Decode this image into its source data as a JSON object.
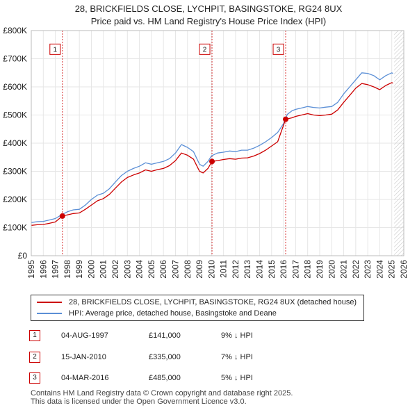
{
  "title_line1": "28, BRICKFIELDS CLOSE, LYCHPIT, BASINGSTOKE, RG24 8UX",
  "title_line2": "Price paid vs. HM Land Registry's House Price Index (HPI)",
  "colors": {
    "price_paid": "#cc0000",
    "hpi": "#5b8fd6",
    "marker_border": "#cc0000",
    "vline": "#cc0000"
  },
  "chart_data": {
    "type": "line",
    "title": "Price paid vs. HM Land Registry's House Price Index (HPI)",
    "xlabel": "",
    "ylabel": "",
    "xlim": [
      1995,
      2026
    ],
    "ylim": [
      0,
      800000
    ],
    "yticks": [
      {
        "value": 0,
        "label": "£0"
      },
      {
        "value": 100000,
        "label": "£100K"
      },
      {
        "value": 200000,
        "label": "£200K"
      },
      {
        "value": 300000,
        "label": "£300K"
      },
      {
        "value": 400000,
        "label": "£400K"
      },
      {
        "value": 500000,
        "label": "£500K"
      },
      {
        "value": 600000,
        "label": "£600K"
      },
      {
        "value": 700000,
        "label": "£700K"
      },
      {
        "value": 800000,
        "label": "£800K"
      }
    ],
    "xticks": [
      "1995",
      "1996",
      "1997",
      "1998",
      "1999",
      "2000",
      "2001",
      "2002",
      "2003",
      "2004",
      "2005",
      "2006",
      "2007",
      "2008",
      "2009",
      "2010",
      "2011",
      "2012",
      "2013",
      "2014",
      "2015",
      "2016",
      "2017",
      "2018",
      "2019",
      "2020",
      "2021",
      "2022",
      "2023",
      "2024",
      "2025",
      "2026"
    ],
    "series": [
      {
        "name": "HPI: Average price, detached house, Basingstoke and Deane",
        "color": "#5b8fd6",
        "points": [
          [
            1995.0,
            118000
          ],
          [
            1995.5,
            121000
          ],
          [
            1996.0,
            122000
          ],
          [
            1996.5,
            127000
          ],
          [
            1997.0,
            132000
          ],
          [
            1997.5,
            145000
          ],
          [
            1998.0,
            156000
          ],
          [
            1998.5,
            163000
          ],
          [
            1999.0,
            165000
          ],
          [
            1999.5,
            180000
          ],
          [
            2000.0,
            200000
          ],
          [
            2000.5,
            215000
          ],
          [
            2001.0,
            222000
          ],
          [
            2001.5,
            238000
          ],
          [
            2002.0,
            262000
          ],
          [
            2002.5,
            285000
          ],
          [
            2003.0,
            300000
          ],
          [
            2003.5,
            310000
          ],
          [
            2004.0,
            318000
          ],
          [
            2004.5,
            330000
          ],
          [
            2005.0,
            325000
          ],
          [
            2005.5,
            330000
          ],
          [
            2006.0,
            335000
          ],
          [
            2006.5,
            345000
          ],
          [
            2007.0,
            365000
          ],
          [
            2007.5,
            395000
          ],
          [
            2008.0,
            385000
          ],
          [
            2008.5,
            370000
          ],
          [
            2009.0,
            325000
          ],
          [
            2009.3,
            318000
          ],
          [
            2009.7,
            335000
          ],
          [
            2010.0,
            355000
          ],
          [
            2010.5,
            365000
          ],
          [
            2011.0,
            368000
          ],
          [
            2011.5,
            372000
          ],
          [
            2012.0,
            370000
          ],
          [
            2012.5,
            375000
          ],
          [
            2013.0,
            375000
          ],
          [
            2013.5,
            382000
          ],
          [
            2014.0,
            392000
          ],
          [
            2014.5,
            405000
          ],
          [
            2015.0,
            420000
          ],
          [
            2015.5,
            438000
          ],
          [
            2016.0,
            470000
          ],
          [
            2016.3,
            502000
          ],
          [
            2016.7,
            515000
          ],
          [
            2017.0,
            520000
          ],
          [
            2017.5,
            525000
          ],
          [
            2018.0,
            530000
          ],
          [
            2018.5,
            527000
          ],
          [
            2019.0,
            525000
          ],
          [
            2019.5,
            528000
          ],
          [
            2020.0,
            530000
          ],
          [
            2020.5,
            545000
          ],
          [
            2021.0,
            575000
          ],
          [
            2021.5,
            600000
          ],
          [
            2022.0,
            625000
          ],
          [
            2022.5,
            650000
          ],
          [
            2023.0,
            648000
          ],
          [
            2023.5,
            640000
          ],
          [
            2024.0,
            625000
          ],
          [
            2024.5,
            640000
          ],
          [
            2025.0,
            650000
          ],
          [
            2025.1,
            648000
          ]
        ]
      },
      {
        "name": "28, BRICKFIELDS CLOSE, LYCHPIT, BASINGSTOKE, RG24 8UX (detached house)",
        "color": "#cc0000",
        "points": [
          [
            1995.0,
            108000
          ],
          [
            1995.5,
            110000
          ],
          [
            1996.0,
            111000
          ],
          [
            1996.5,
            115000
          ],
          [
            1997.0,
            120000
          ],
          [
            1997.59,
            141000
          ],
          [
            1998.0,
            145000
          ],
          [
            1998.5,
            150000
          ],
          [
            1999.0,
            152000
          ],
          [
            1999.5,
            165000
          ],
          [
            2000.0,
            180000
          ],
          [
            2000.5,
            195000
          ],
          [
            2001.0,
            203000
          ],
          [
            2001.5,
            218000
          ],
          [
            2002.0,
            240000
          ],
          [
            2002.5,
            262000
          ],
          [
            2003.0,
            278000
          ],
          [
            2003.5,
            287000
          ],
          [
            2004.0,
            294000
          ],
          [
            2004.5,
            305000
          ],
          [
            2005.0,
            300000
          ],
          [
            2005.5,
            306000
          ],
          [
            2006.0,
            310000
          ],
          [
            2006.5,
            320000
          ],
          [
            2007.0,
            338000
          ],
          [
            2007.5,
            365000
          ],
          [
            2008.0,
            357000
          ],
          [
            2008.5,
            343000
          ],
          [
            2009.0,
            300000
          ],
          [
            2009.3,
            294000
          ],
          [
            2009.7,
            310000
          ],
          [
            2010.04,
            335000
          ],
          [
            2010.5,
            338000
          ],
          [
            2011.0,
            342000
          ],
          [
            2011.5,
            345000
          ],
          [
            2012.0,
            343000
          ],
          [
            2012.5,
            347000
          ],
          [
            2013.0,
            348000
          ],
          [
            2013.5,
            354000
          ],
          [
            2014.0,
            363000
          ],
          [
            2014.5,
            375000
          ],
          [
            2015.0,
            390000
          ],
          [
            2015.5,
            405000
          ],
          [
            2016.17,
            485000
          ],
          [
            2016.7,
            490000
          ],
          [
            2017.0,
            495000
          ],
          [
            2017.5,
            500000
          ],
          [
            2018.0,
            505000
          ],
          [
            2018.5,
            500000
          ],
          [
            2019.0,
            498000
          ],
          [
            2019.5,
            500000
          ],
          [
            2020.0,
            503000
          ],
          [
            2020.5,
            518000
          ],
          [
            2021.0,
            545000
          ],
          [
            2021.5,
            570000
          ],
          [
            2022.0,
            595000
          ],
          [
            2022.5,
            612000
          ],
          [
            2023.0,
            608000
          ],
          [
            2023.5,
            600000
          ],
          [
            2024.0,
            590000
          ],
          [
            2024.5,
            605000
          ],
          [
            2025.0,
            615000
          ],
          [
            2025.1,
            613000
          ]
        ]
      }
    ],
    "sales": [
      {
        "label": "1",
        "x": 1997.59,
        "value": 141000
      },
      {
        "label": "2",
        "x": 2010.04,
        "value": 335000
      },
      {
        "label": "3",
        "x": 2016.17,
        "value": 485000
      }
    ],
    "hatch_from": 2025.2
  },
  "legend": {
    "property_label": "28, BRICKFIELDS CLOSE, LYCHPIT, BASINGSTOKE, RG24 8UX (detached house)",
    "hpi_label": "HPI: Average price, detached house, Basingstoke and Deane"
  },
  "sales_table": [
    {
      "num": "1",
      "date": "04-AUG-1997",
      "price": "£141,000",
      "diff": "9% ↓ HPI"
    },
    {
      "num": "2",
      "date": "15-JAN-2010",
      "price": "£335,000",
      "diff": "7% ↓ HPI"
    },
    {
      "num": "3",
      "date": "04-MAR-2016",
      "price": "£485,000",
      "diff": "5% ↓ HPI"
    }
  ],
  "footer": {
    "line1": "Contains HM Land Registry data © Crown copyright and database right 2025.",
    "line2": "This data is licensed under the Open Government Licence v3.0."
  }
}
